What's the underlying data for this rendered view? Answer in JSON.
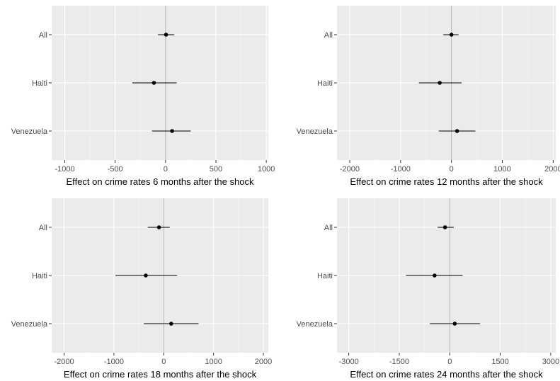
{
  "colors": {
    "panel_background": "#ebebeb",
    "grid_major": "#ffffff",
    "grid_minor": "#f4f4f4",
    "zero_line": "#a0a0a0",
    "point": "#000000",
    "tick": "#333333",
    "tick_label": "#4d4d4d"
  },
  "chart_data": [
    {
      "type": "scatter",
      "xlabel": "Effect on crime rates 6 months after the shock",
      "ylabel": "",
      "xlim": [
        -1130,
        1020
      ],
      "xticks": [
        -1000,
        -500,
        0,
        500,
        1000
      ],
      "xtick_labels": [
        "-1000",
        "-500",
        "0",
        "500",
        "1000"
      ],
      "reference_line_x": 0,
      "grid": true,
      "categories": [
        "All",
        "Haiti",
        "Venezuela"
      ],
      "estimates": [
        5,
        -115,
        65
      ],
      "ci_low": [
        -75,
        -330,
        -135
      ],
      "ci_high": [
        85,
        110,
        250
      ]
    },
    {
      "type": "scatter",
      "xlabel": "Effect on crime rates 12 months after the shock",
      "ylabel": "",
      "xlim": [
        -2250,
        2050
      ],
      "xticks": [
        -2000,
        -1000,
        0,
        1000,
        2000
      ],
      "xtick_labels": [
        "-2000",
        "-1000",
        "0",
        "1000",
        "2000"
      ],
      "reference_line_x": 0,
      "grid": true,
      "categories": [
        "All",
        "Haiti",
        "Venezuela"
      ],
      "estimates": [
        0,
        -230,
        110
      ],
      "ci_low": [
        -160,
        -640,
        -250
      ],
      "ci_high": [
        140,
        200,
        470
      ]
    },
    {
      "type": "scatter",
      "xlabel": "Effect on crime rates 18 months after the shock",
      "ylabel": "",
      "xlim": [
        -2250,
        2100
      ],
      "xticks": [
        -2000,
        -1000,
        0,
        1000,
        2000
      ],
      "xtick_labels": [
        "-2000",
        "-1000",
        "0",
        "1000",
        "2000"
      ],
      "reference_line_x": 0,
      "grid": true,
      "categories": [
        "All",
        "Haiti",
        "Venezuela"
      ],
      "estimates": [
        -95,
        -360,
        150
      ],
      "ci_low": [
        -320,
        -970,
        -400
      ],
      "ci_high": [
        120,
        270,
        700
      ]
    },
    {
      "type": "scatter",
      "xlabel": "Effect on crime rates 24 months after the shock",
      "ylabel": "",
      "xlim": [
        -3350,
        3150
      ],
      "xticks": [
        -3000,
        -1500,
        0,
        1500,
        3000
      ],
      "xtick_labels": [
        "-3000",
        "-1500",
        "0",
        "1500",
        "3000"
      ],
      "reference_line_x": 0,
      "grid": true,
      "categories": [
        "All",
        "Haiti",
        "Venezuela"
      ],
      "estimates": [
        -140,
        -450,
        150
      ],
      "ci_low": [
        -360,
        -1300,
        -590
      ],
      "ci_high": [
        120,
        380,
        900
      ]
    }
  ]
}
